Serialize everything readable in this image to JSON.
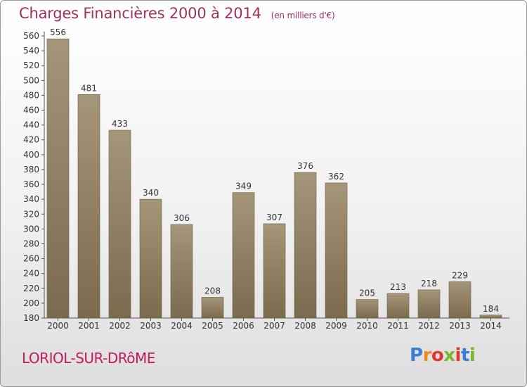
{
  "title": "Charges Financières 2000 à 2014",
  "unit": "(en milliers d'€)",
  "commune": "LORIOL-SUR-DRôME",
  "logo": {
    "p": "P",
    "r": "r",
    "o": "o",
    "x": "x",
    "i1": "i",
    "t": "t",
    "i2": "i"
  },
  "colors": {
    "bar_top": "#a59579",
    "bar_bottom": "#7b6a4d",
    "title": "#a0305c",
    "commune": "#c01b5c"
  },
  "chart_data": {
    "type": "bar",
    "categories": [
      "2000",
      "2001",
      "2002",
      "2003",
      "2004",
      "2005",
      "2006",
      "2007",
      "2008",
      "2009",
      "2010",
      "2011",
      "2012",
      "2013",
      "2014"
    ],
    "values": [
      556,
      481,
      433,
      340,
      306,
      208,
      349,
      307,
      376,
      362,
      205,
      213,
      218,
      229,
      184
    ],
    "ylim": [
      180,
      560
    ],
    "yticks": [
      180,
      200,
      220,
      240,
      260,
      280,
      300,
      320,
      340,
      360,
      380,
      400,
      420,
      440,
      460,
      480,
      500,
      520,
      540,
      560
    ],
    "grid": false
  }
}
